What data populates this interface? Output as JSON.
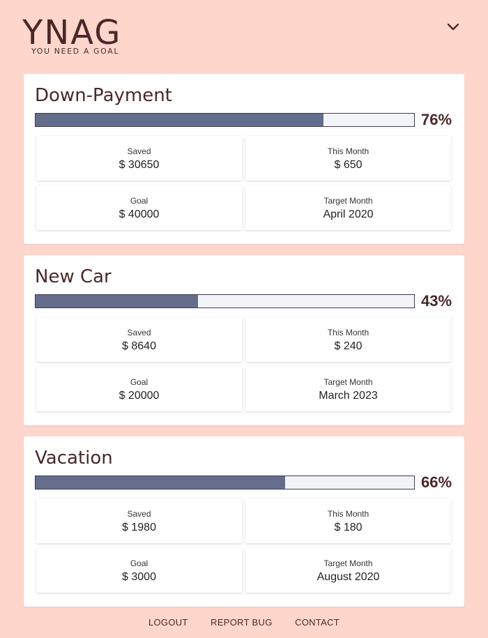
{
  "header": {
    "logo": "YNAG",
    "tagline": "YOU NEED A GOAL",
    "menu_icon": "chevron-down-icon"
  },
  "goals": [
    {
      "title": "Down-Payment",
      "progress": 76,
      "percent_label": "76%",
      "saved_label": "Saved",
      "saved_value": "$ 30650",
      "month_label": "This Month",
      "month_value": "$ 650",
      "goal_label": "Goal",
      "goal_value": "$ 40000",
      "target_label": "Target Month",
      "target_value": "April 2020"
    },
    {
      "title": "New Car",
      "progress": 43,
      "percent_label": "43%",
      "saved_label": "Saved",
      "saved_value": "$ 8640",
      "month_label": "This Month",
      "month_value": "$ 240",
      "goal_label": "Goal",
      "goal_value": "$ 20000",
      "target_label": "Target Month",
      "target_value": "March 2023"
    },
    {
      "title": "Vacation",
      "progress": 66,
      "percent_label": "66%",
      "saved_label": "Saved",
      "saved_value": "$ 1980",
      "month_label": "This Month",
      "month_value": "$ 180",
      "goal_label": "Goal",
      "goal_value": "$ 3000",
      "target_label": "Target Month",
      "target_value": "August 2020"
    }
  ],
  "footer": {
    "logout": "LOGOUT",
    "report_bug": "REPORT BUG",
    "contact": "CONTACT"
  },
  "colors": {
    "background": "#ffd6cc",
    "bar_fill": "#646e8c",
    "bar_empty": "#f3f4f8",
    "text": "#4a2828"
  }
}
